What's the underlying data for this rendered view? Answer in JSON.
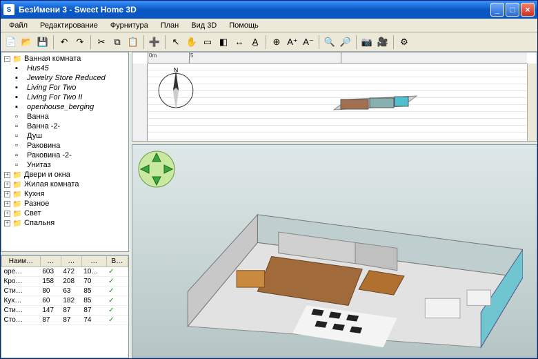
{
  "window": {
    "title": "БезИмени 3 - Sweet Home 3D",
    "app_icon_text": "S"
  },
  "menus": [
    "Файл",
    "Редактирование",
    "Фурнитура",
    "План",
    "Вид 3D",
    "Помощь"
  ],
  "ruler": {
    "marks": [
      "0m",
      "5"
    ]
  },
  "tree": {
    "root": "Ванная комната",
    "children_italic": [
      "Hus45",
      "Jewelry Store Reduced",
      "Living For Two",
      "Living For Two II",
      "openhouse_berging"
    ],
    "children_plain": [
      "Ванна",
      "Ванна -2-",
      "Душ",
      "Раковина",
      "Раковина -2-",
      "Унитаз"
    ],
    "siblings": [
      "Двери и окна",
      "Жилая комната",
      "Кухня",
      "Разное",
      "Свет",
      "Спальня"
    ]
  },
  "table": {
    "headers": [
      "Наим…",
      "…",
      "…",
      "…",
      "В…"
    ],
    "rows": [
      [
        "оре…",
        "603",
        "472",
        "10…",
        "✓"
      ],
      [
        "Кро…",
        "158",
        "208",
        "70",
        "✓"
      ],
      [
        "Сти…",
        "80",
        "63",
        "85",
        "✓"
      ],
      [
        "Кух…",
        "60",
        "182",
        "85",
        "✓"
      ],
      [
        "Сти…",
        "147",
        "87",
        "87",
        "✓"
      ],
      [
        "Сто…",
        "87",
        "87",
        "74",
        "✓"
      ]
    ]
  },
  "compass_label": "N",
  "colors": {
    "titlebar_start": "#3a94ff",
    "titlebar_end": "#0a57c4",
    "win_bg": "#ece9d8",
    "border": "#aca899",
    "panel_border": "#7f9db9",
    "selection": "#316ac5"
  }
}
